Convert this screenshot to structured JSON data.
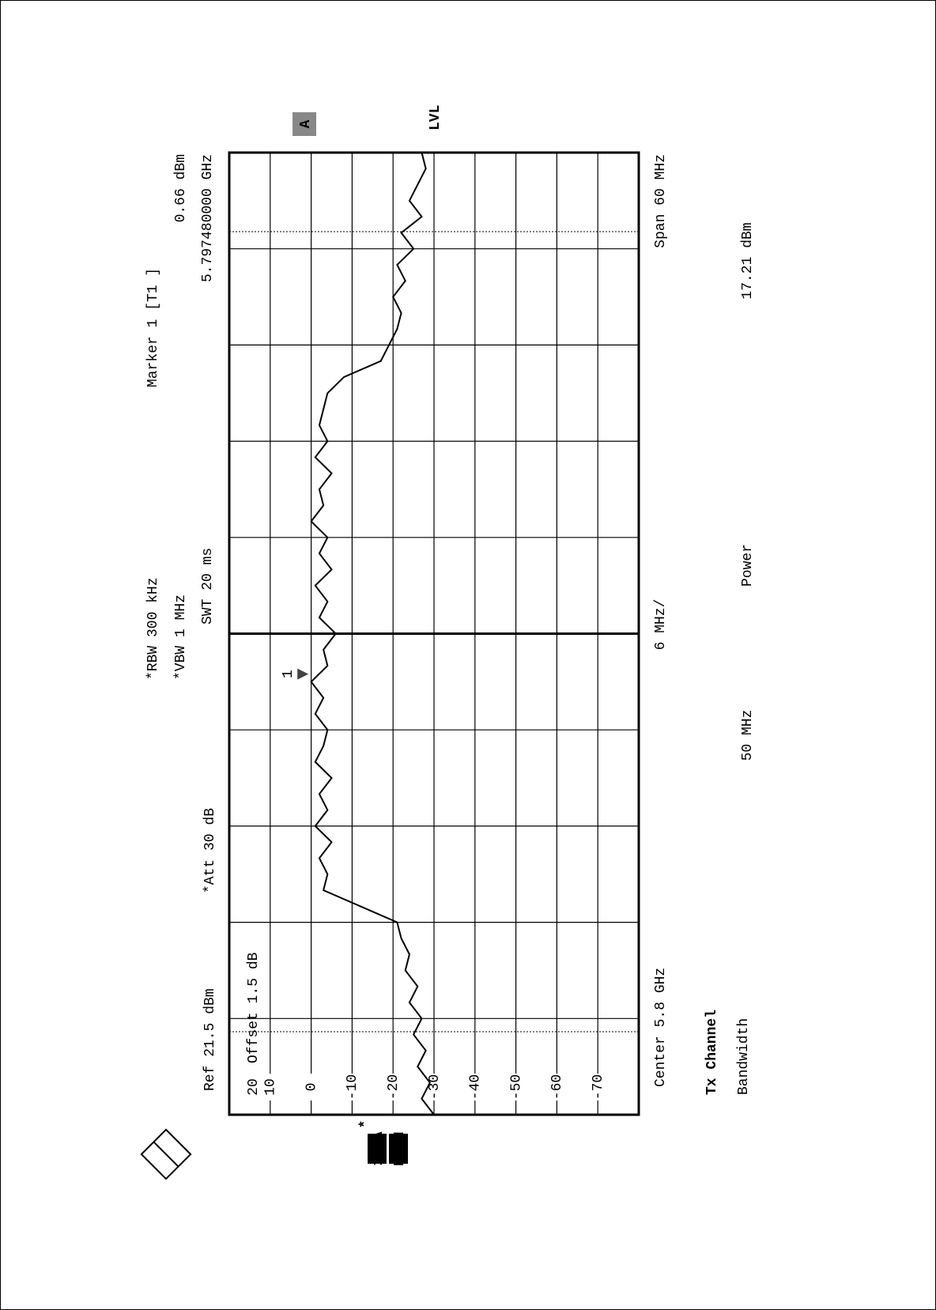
{
  "chart_data": {
    "type": "line",
    "settings": {
      "ref": "Ref 21.5 dBm",
      "att": "*Att 30 dB",
      "offset": "Offset 1.5 dB",
      "rbw": "*RBW 300 kHz",
      "vbw": "*VBW 1 MHz",
      "swt": "SWT 20 ms"
    },
    "x_axis": {
      "center": "Center 5.8 GHz",
      "division": "6 MHz/",
      "span": "Span 60 MHz"
    },
    "badges": {
      "trace": "A",
      "level": "LVL",
      "mode": "1 SA",
      "detector": "MAXH",
      "flag": "*"
    },
    "marker": {
      "title": "Marker 1 [T1 ]",
      "id": "1",
      "level": 0.66,
      "level_label": "0.66 dBm",
      "freq": 5.79748,
      "freq_label": "5.797480000 GHz"
    },
    "x": [
      5.77,
      5.771,
      5.772,
      5.773,
      5.774,
      5.775,
      5.776,
      5.777,
      5.778,
      5.779,
      5.78,
      5.781,
      5.782,
      5.783,
      5.784,
      5.785,
      5.786,
      5.787,
      5.788,
      5.789,
      5.79,
      5.791,
      5.792,
      5.793,
      5.794,
      5.795,
      5.796,
      5.797,
      5.798,
      5.799,
      5.8,
      5.801,
      5.802,
      5.803,
      5.804,
      5.805,
      5.806,
      5.807,
      5.808,
      5.809,
      5.81,
      5.811,
      5.812,
      5.813,
      5.814,
      5.815,
      5.816,
      5.817,
      5.818,
      5.819,
      5.82,
      5.821,
      5.822,
      5.823,
      5.824,
      5.825,
      5.826,
      5.827,
      5.828,
      5.829,
      5.83
    ],
    "values": [
      -30,
      -27,
      -29,
      -26,
      -28,
      -25,
      -27,
      -24,
      -26,
      -23,
      -24,
      -22,
      -21,
      -12,
      -3,
      -4,
      -2,
      -5,
      -1,
      -4,
      -2,
      -5,
      -1,
      -3,
      -4,
      -1,
      -3,
      0,
      -4,
      -3,
      -6,
      -2,
      -4,
      -1,
      -5,
      -2,
      -4,
      0,
      -3,
      -2,
      -5,
      -1,
      -4,
      -2,
      -3,
      -4,
      -8,
      -17,
      -19,
      -21,
      -22,
      -20,
      -23,
      -21,
      -25,
      -22,
      -27,
      -24,
      -26,
      -28,
      -27
    ],
    "color": "#000000",
    "xlim": [
      5.77,
      5.83
    ],
    "ylim": [
      -80,
      20
    ],
    "yticks": [
      20,
      10,
      0,
      -10,
      -20,
      -30,
      -40,
      -50,
      -60,
      -70
    ],
    "grid": true,
    "result": {
      "channel": "Tx Channel",
      "bandwidth_label": "Bandwidth",
      "bandwidth": "50 MHz",
      "power_label": "Power",
      "power": "17.21 dBm"
    }
  }
}
